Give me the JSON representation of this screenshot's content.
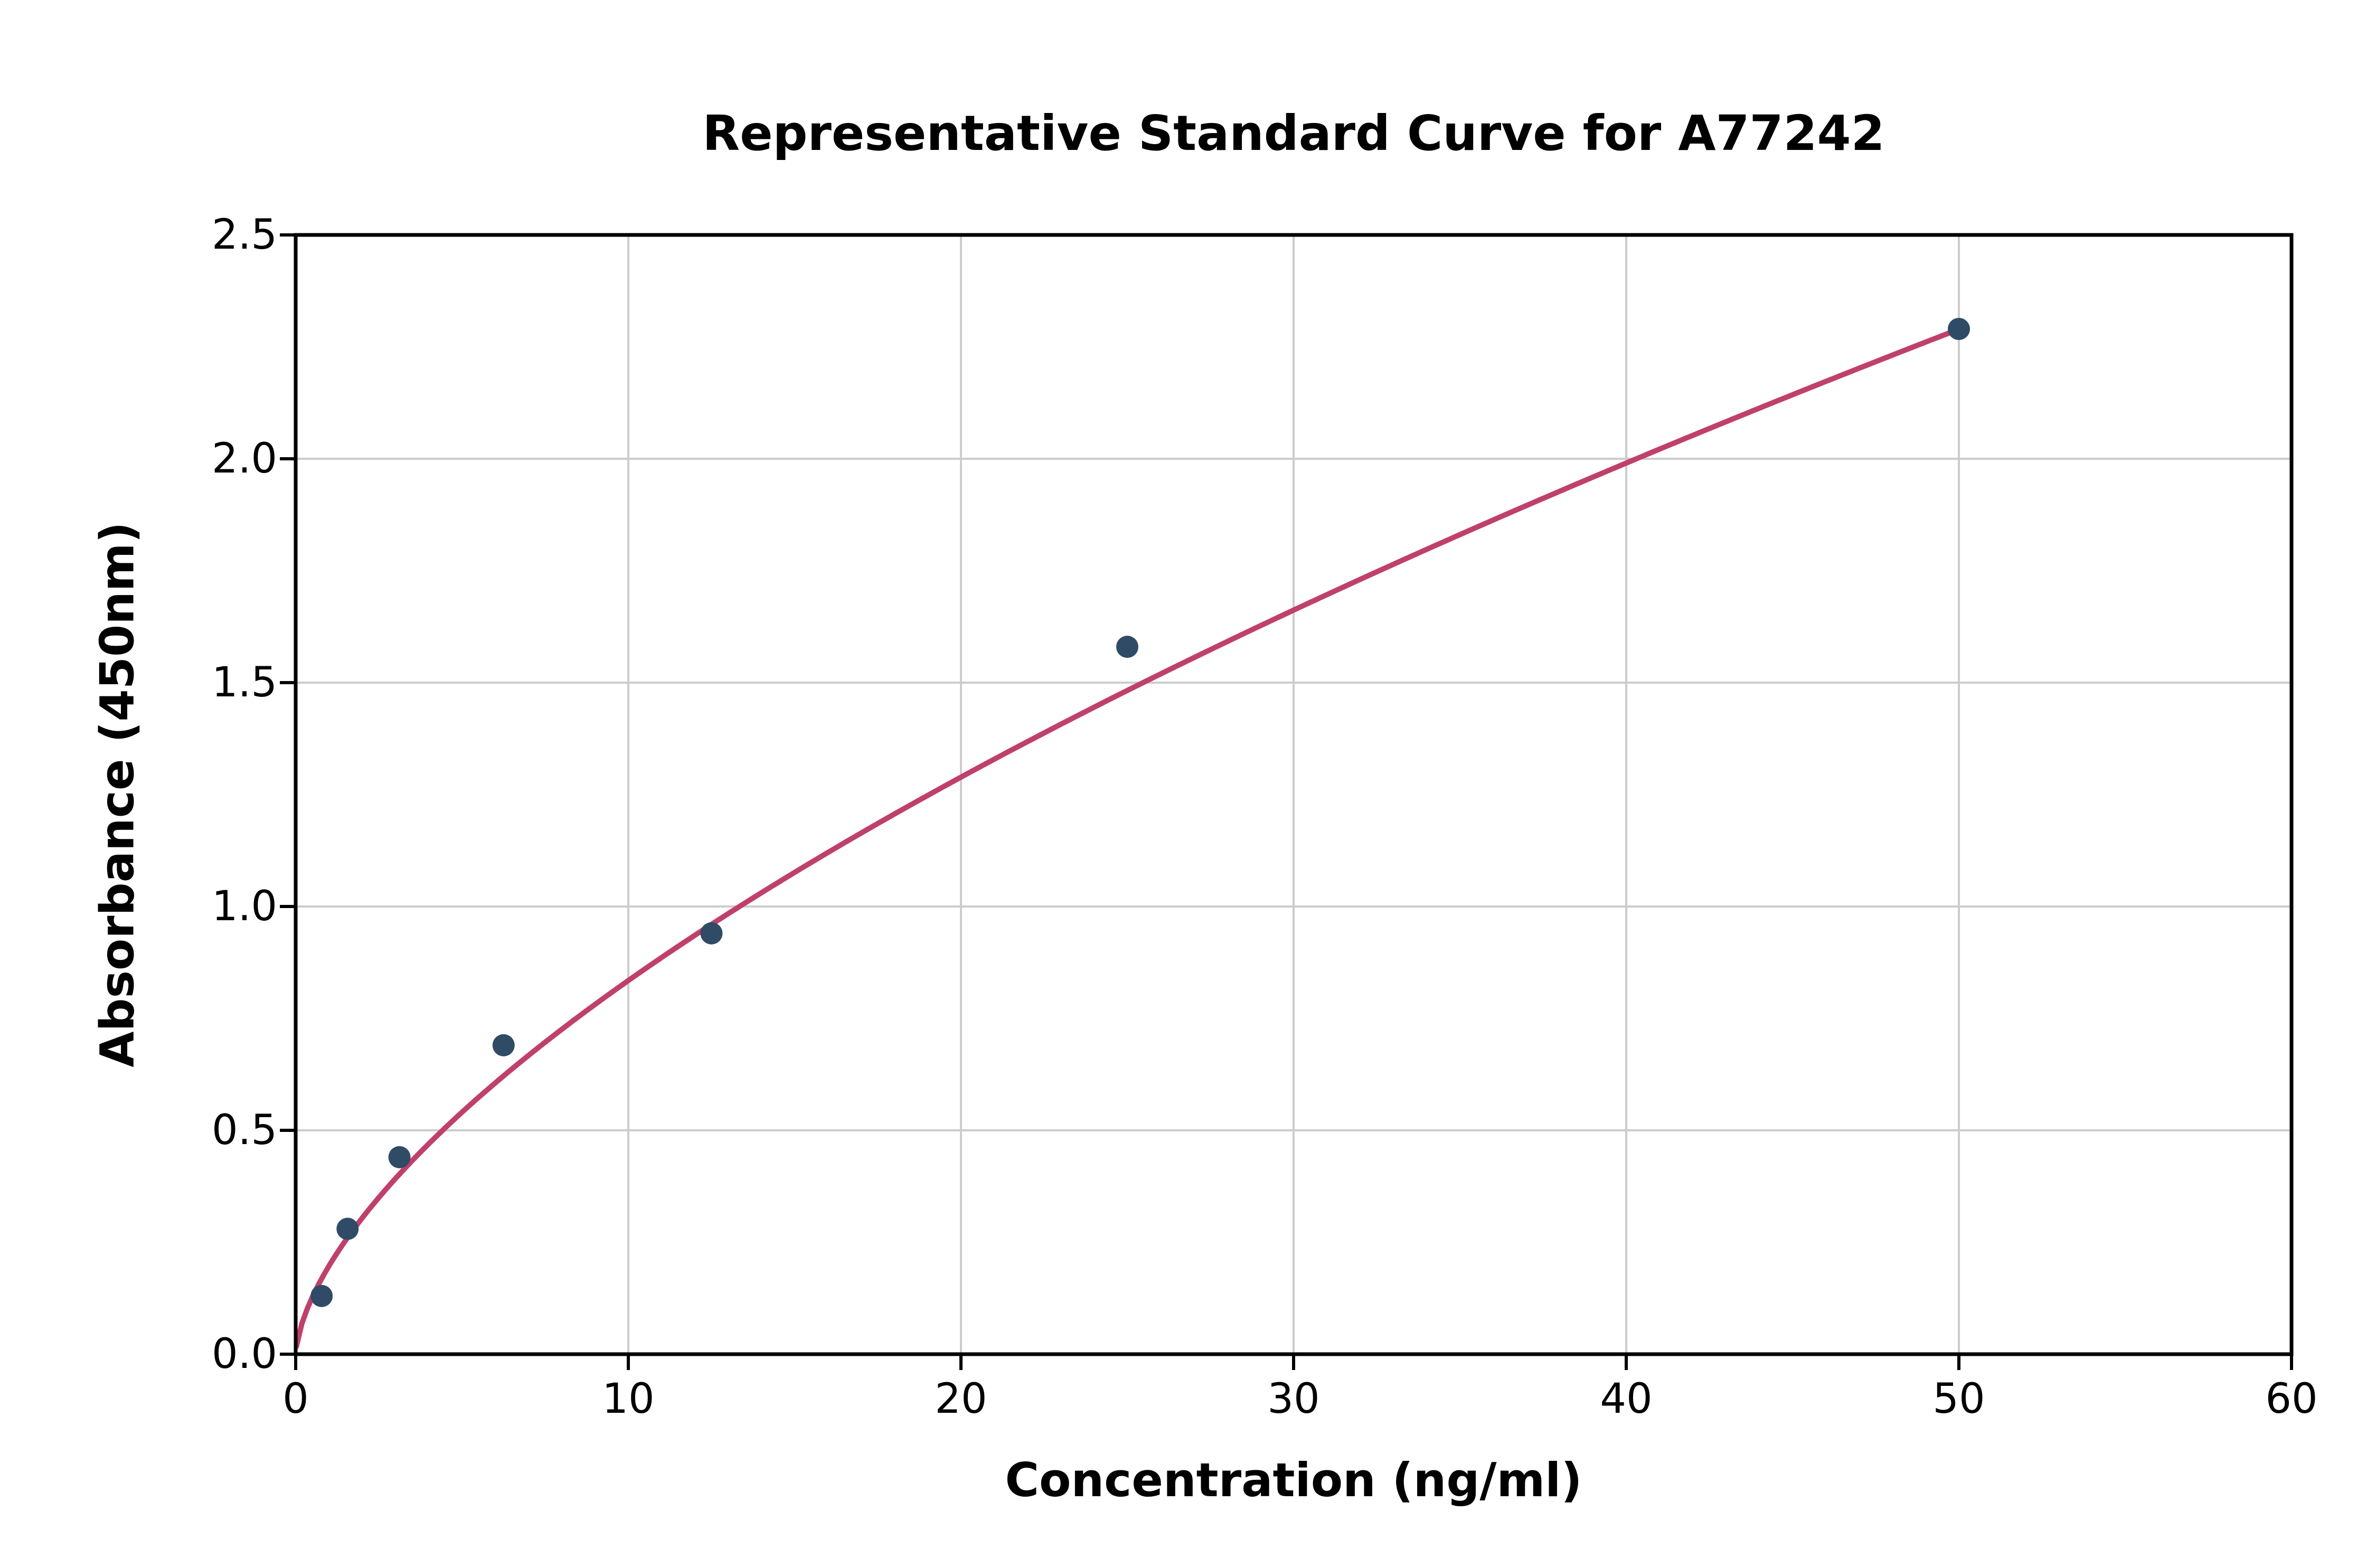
{
  "chart_data": {
    "type": "scatter",
    "title": "Representative Standard Curve for A77242",
    "xlabel": "Concentration (ng/ml)",
    "ylabel": "Absorbance (450nm)",
    "xlim": [
      0,
      60
    ],
    "ylim": [
      0,
      2.5
    ],
    "x_ticks": [
      0,
      10,
      20,
      30,
      40,
      50,
      60
    ],
    "x_tick_labels": [
      "0",
      "10",
      "20",
      "30",
      "40",
      "50",
      "60"
    ],
    "y_ticks": [
      0.0,
      0.5,
      1.0,
      1.5,
      2.0,
      2.5
    ],
    "y_tick_labels": [
      "0.0",
      "0.5",
      "1.0",
      "1.5",
      "2.0",
      "2.5"
    ],
    "grid": true,
    "legend": "none",
    "points": [
      {
        "x": 0.78,
        "y": 0.13
      },
      {
        "x": 1.56,
        "y": 0.28
      },
      {
        "x": 3.12,
        "y": 0.44
      },
      {
        "x": 6.25,
        "y": 0.69
      },
      {
        "x": 12.5,
        "y": 0.94
      },
      {
        "x": 25.0,
        "y": 1.58
      },
      {
        "x": 50.0,
        "y": 2.29
      }
    ],
    "trendline": {
      "type": "power",
      "a": 0.197,
      "b": 0.627,
      "x_start": 0.02,
      "x_end": 50
    },
    "colors": {
      "point": "#2f4b66",
      "line": "#c0406c",
      "grid": "#cccccc",
      "axis": "#000000",
      "background": "#ffffff"
    }
  }
}
